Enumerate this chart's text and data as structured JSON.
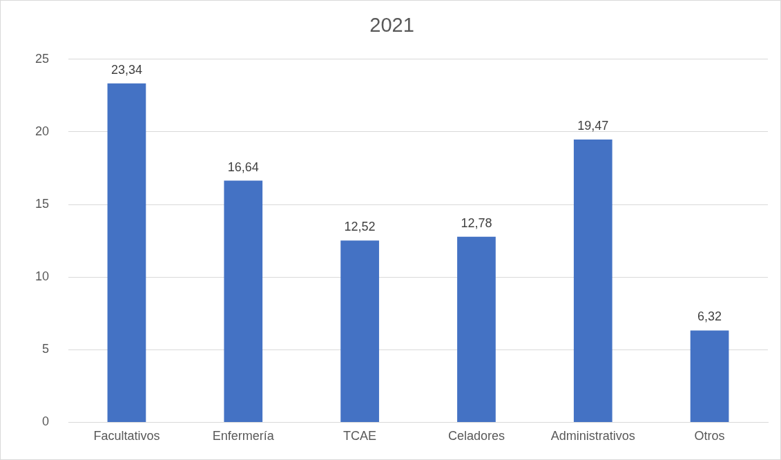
{
  "chart_data": {
    "type": "bar",
    "title": "2021",
    "categories": [
      "Facultativos",
      "Enfermería",
      "TCAE",
      "Celadores",
      "Administrativos",
      "Otros"
    ],
    "values": [
      23.34,
      16.64,
      12.52,
      12.78,
      19.47,
      6.32
    ],
    "value_labels": [
      "23,34",
      "16,64",
      "12,52",
      "12,78",
      "19,47",
      "6,32"
    ],
    "color": "#4472c4",
    "ylim": [
      0,
      25
    ],
    "yticks": [
      0,
      5,
      10,
      15,
      20,
      25
    ],
    "grid": "y",
    "legend": false
  }
}
